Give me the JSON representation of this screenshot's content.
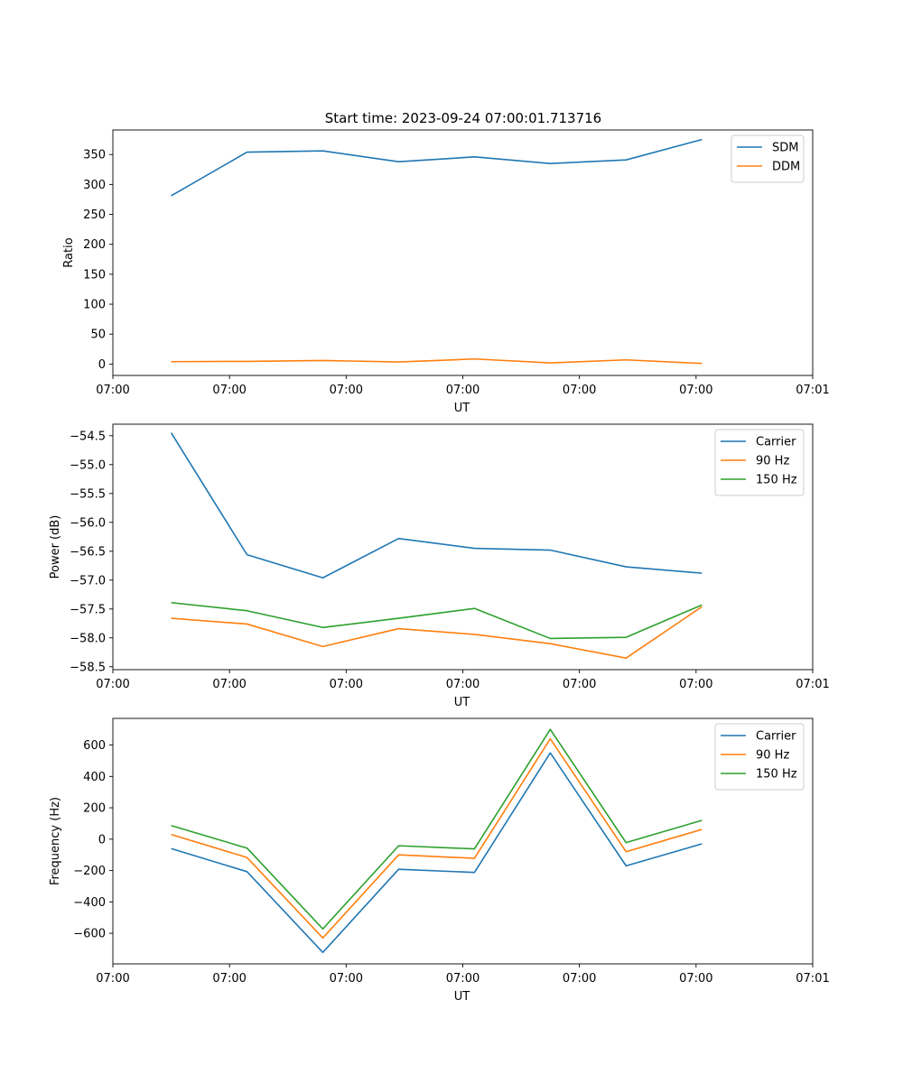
{
  "title": "Start time: 2023-09-24 07:00:01.713716",
  "chart_data": [
    {
      "type": "line",
      "xlabel": "UT",
      "ylabel": "Ratio",
      "x_tick_labels": [
        "07:00",
        "07:00",
        "07:00",
        "07:00",
        "07:00",
        "07:00",
        "07:01"
      ],
      "x_index": [
        0.5,
        1.15,
        1.8,
        2.45,
        3.1,
        3.75,
        4.4,
        5.05
      ],
      "xlim": [
        0,
        6
      ],
      "ylim": [
        -19,
        391
      ],
      "y_ticks": [
        0,
        50,
        100,
        150,
        200,
        250,
        300,
        350
      ],
      "legend_position": "top-right",
      "series": [
        {
          "name": "SDM",
          "color": "#1f77b4",
          "values": [
            281,
            354,
            356,
            338,
            346,
            335,
            341,
            375
          ]
        },
        {
          "name": "DDM",
          "color": "#ff7f0e",
          "values": [
            4,
            4.5,
            6,
            3.5,
            8.5,
            2,
            7,
            1
          ]
        }
      ]
    },
    {
      "type": "line",
      "xlabel": "UT",
      "ylabel": "Power (dB)",
      "x_tick_labels": [
        "07:00",
        "07:00",
        "07:00",
        "07:00",
        "07:00",
        "07:00",
        "07:01"
      ],
      "x_index": [
        0.5,
        1.15,
        1.8,
        2.45,
        3.1,
        3.75,
        4.4,
        5.05
      ],
      "xlim": [
        0,
        6
      ],
      "ylim": [
        -58.55,
        -54.3
      ],
      "y_ticks": [
        -58.5,
        -58.0,
        -57.5,
        -57.0,
        -56.5,
        -56.0,
        -55.5,
        -55.0,
        -54.5
      ],
      "y_tick_labels": [
        "−58.5",
        "−58.0",
        "−57.5",
        "−57.0",
        "−56.5",
        "−56.0",
        "−55.5",
        "−55.0",
        "−54.5"
      ],
      "legend_position": "top-right",
      "series": [
        {
          "name": "Carrier",
          "color": "#1f77b4",
          "values": [
            -54.45,
            -56.56,
            -56.96,
            -56.28,
            -56.45,
            -56.48,
            -56.77,
            -56.88
          ]
        },
        {
          "name": "90 Hz",
          "color": "#ff7f0e",
          "values": [
            -57.66,
            -57.76,
            -58.15,
            -57.84,
            -57.94,
            -58.1,
            -58.35,
            -57.46
          ]
        },
        {
          "name": "150 Hz",
          "color": "#2ca02c",
          "values": [
            -57.39,
            -57.53,
            -57.82,
            -57.66,
            -57.49,
            -58.01,
            -57.99,
            -57.43
          ]
        }
      ]
    },
    {
      "type": "line",
      "xlabel": "UT",
      "ylabel": "Frequency (Hz)",
      "x_tick_labels": [
        "07:00",
        "07:00",
        "07:00",
        "07:00",
        "07:00",
        "07:00",
        "07:01"
      ],
      "x_index": [
        0.5,
        1.15,
        1.8,
        2.45,
        3.1,
        3.75,
        4.4,
        5.05
      ],
      "xlim": [
        0,
        6
      ],
      "ylim": [
        -795,
        770
      ],
      "y_ticks": [
        -600,
        -400,
        -200,
        0,
        200,
        400,
        600
      ],
      "y_tick_labels": [
        "−600",
        "−400",
        "−200",
        "0",
        "200",
        "400",
        "600"
      ],
      "legend_position": "top-right",
      "series": [
        {
          "name": "Carrier",
          "color": "#1f77b4",
          "values": [
            -60,
            -207,
            -722,
            -192,
            -212,
            550,
            -170,
            -30
          ]
        },
        {
          "name": "90 Hz",
          "color": "#ff7f0e",
          "values": [
            30,
            -117,
            -630,
            -100,
            -122,
            640,
            -80,
            62
          ]
        },
        {
          "name": "150 Hz",
          "color": "#2ca02c",
          "values": [
            87,
            -57,
            -572,
            -42,
            -62,
            700,
            -22,
            120
          ]
        }
      ]
    }
  ]
}
